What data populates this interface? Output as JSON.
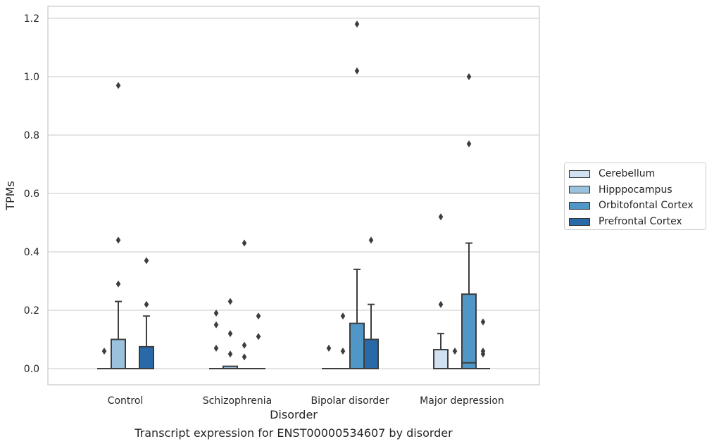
{
  "chart_data": {
    "type": "box",
    "xlabel": "Disorder",
    "ylabel": "TPMs",
    "caption": "Transcript expression for ENST00000534607 by disorder",
    "ylim": [
      -0.055,
      1.24
    ],
    "yticks": [
      "0.0",
      "0.2",
      "0.4",
      "0.6",
      "0.8",
      "1.0",
      "1.2"
    ],
    "ytick_values": [
      0,
      0.2,
      0.4,
      0.6,
      0.8,
      1.0,
      1.2
    ],
    "grid": "horizontal",
    "legend_placement": "right",
    "categories": [
      "Control",
      "Schizophrenia",
      "Bipolar disorder",
      "Major depression"
    ],
    "series": [
      {
        "name": "Cerebellum",
        "color": "#d0e1f2",
        "boxes": [
          {
            "q1": 0,
            "median": 0,
            "q3": 0,
            "whisker_low": 0,
            "whisker_high": 0,
            "outliers": [
              0.06
            ]
          },
          {
            "q1": 0,
            "median": 0,
            "q3": 0,
            "whisker_low": 0,
            "whisker_high": 0,
            "outliers": [
              0.07,
              0.15,
              0.19
            ]
          },
          {
            "q1": 0,
            "median": 0,
            "q3": 0,
            "whisker_low": 0,
            "whisker_high": 0,
            "outliers": [
              0.07
            ]
          },
          {
            "q1": 0,
            "median": 0,
            "q3": 0.065,
            "whisker_low": 0,
            "whisker_high": 0.12,
            "outliers": [
              0.22,
              0.52
            ]
          }
        ]
      },
      {
        "name": "Hipppocampus",
        "color": "#9ac2dd",
        "boxes": [
          {
            "q1": 0,
            "median": 0,
            "q3": 0.1,
            "whisker_low": 0,
            "whisker_high": 0.23,
            "outliers": [
              0.29,
              0.44,
              0.97
            ]
          },
          {
            "q1": 0,
            "median": 0,
            "q3": 0.008,
            "whisker_low": 0,
            "whisker_high": 0.008,
            "outliers": [
              0.05,
              0.12,
              0.23
            ]
          },
          {
            "q1": 0,
            "median": 0,
            "q3": 0,
            "whisker_low": 0,
            "whisker_high": 0,
            "outliers": [
              0.06,
              0.18
            ]
          },
          {
            "q1": 0,
            "median": 0,
            "q3": 0,
            "whisker_low": 0,
            "whisker_high": 0,
            "outliers": [
              0.06
            ]
          }
        ]
      },
      {
        "name": "Orbitofontal Cortex",
        "color": "#5096c6",
        "boxes": [
          {
            "q1": 0,
            "median": 0,
            "q3": 0,
            "whisker_low": 0,
            "whisker_high": 0,
            "outliers": []
          },
          {
            "q1": 0,
            "median": 0,
            "q3": 0,
            "whisker_low": 0,
            "whisker_high": 0,
            "outliers": [
              0.04,
              0.08,
              0.43
            ]
          },
          {
            "q1": 0,
            "median": 0,
            "q3": 0.155,
            "whisker_low": 0,
            "whisker_high": 0.34,
            "outliers": [
              1.02,
              1.18
            ]
          },
          {
            "q1": 0,
            "median": 0.02,
            "q3": 0.255,
            "whisker_low": 0,
            "whisker_high": 0.43,
            "outliers": [
              0.77,
              1.0
            ]
          }
        ]
      },
      {
        "name": "Prefrontal Cortex",
        "color": "#2a69a8",
        "boxes": [
          {
            "q1": 0,
            "median": 0,
            "q3": 0.075,
            "whisker_low": 0,
            "whisker_high": 0.18,
            "outliers": [
              0.22,
              0.37
            ]
          },
          {
            "q1": 0,
            "median": 0,
            "q3": 0,
            "whisker_low": 0,
            "whisker_high": 0,
            "outliers": [
              0.11,
              0.18
            ]
          },
          {
            "q1": 0,
            "median": 0,
            "q3": 0.1,
            "whisker_low": 0,
            "whisker_high": 0.22,
            "outliers": [
              0.44
            ]
          },
          {
            "q1": 0,
            "median": 0,
            "q3": 0,
            "whisker_low": 0,
            "whisker_high": 0,
            "outliers": [
              0.05,
              0.06,
              0.16
            ]
          }
        ]
      }
    ]
  }
}
